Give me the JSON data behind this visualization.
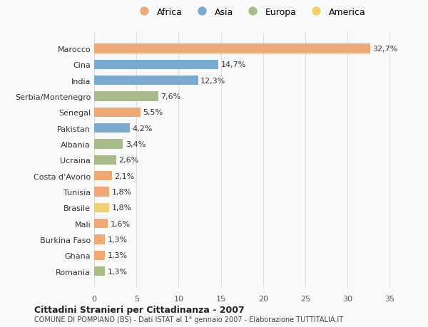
{
  "categories": [
    "Romania",
    "Ghana",
    "Burkina Faso",
    "Mali",
    "Brasile",
    "Tunisia",
    "Costa d'Avorio",
    "Ucraina",
    "Albania",
    "Pakistan",
    "Senegal",
    "Serbia/Montenegro",
    "India",
    "Cina",
    "Marocco"
  ],
  "values": [
    1.3,
    1.3,
    1.3,
    1.6,
    1.8,
    1.8,
    2.1,
    2.6,
    3.4,
    4.2,
    5.5,
    7.6,
    12.3,
    14.7,
    32.7
  ],
  "labels": [
    "1,3%",
    "1,3%",
    "1,3%",
    "1,6%",
    "1,8%",
    "1,8%",
    "2,1%",
    "2,6%",
    "3,4%",
    "4,2%",
    "5,5%",
    "7,6%",
    "12,3%",
    "14,7%",
    "32,7%"
  ],
  "continents": [
    "Europa",
    "Africa",
    "Africa",
    "Africa",
    "America",
    "Africa",
    "Africa",
    "Europa",
    "Europa",
    "Asia",
    "Africa",
    "Europa",
    "Asia",
    "Asia",
    "Africa"
  ],
  "continent_colors": {
    "Africa": "#F0A875",
    "Asia": "#7BAAD0",
    "Europa": "#A8BB8A",
    "America": "#F0D070"
  },
  "legend_order": [
    "Africa",
    "Asia",
    "Europa",
    "America"
  ],
  "title1": "Cittadini Stranieri per Cittadinanza - 2007",
  "title2": "COMUNE DI POMPIANO (BS) - Dati ISTAT al 1° gennaio 2007 - Elaborazione TUTTITALIA.IT",
  "xlim": [
    0,
    37
  ],
  "xticks": [
    0,
    5,
    10,
    15,
    20,
    25,
    30,
    35
  ],
  "background_color": "#f9f9f9",
  "grid_color": "#dddddd"
}
